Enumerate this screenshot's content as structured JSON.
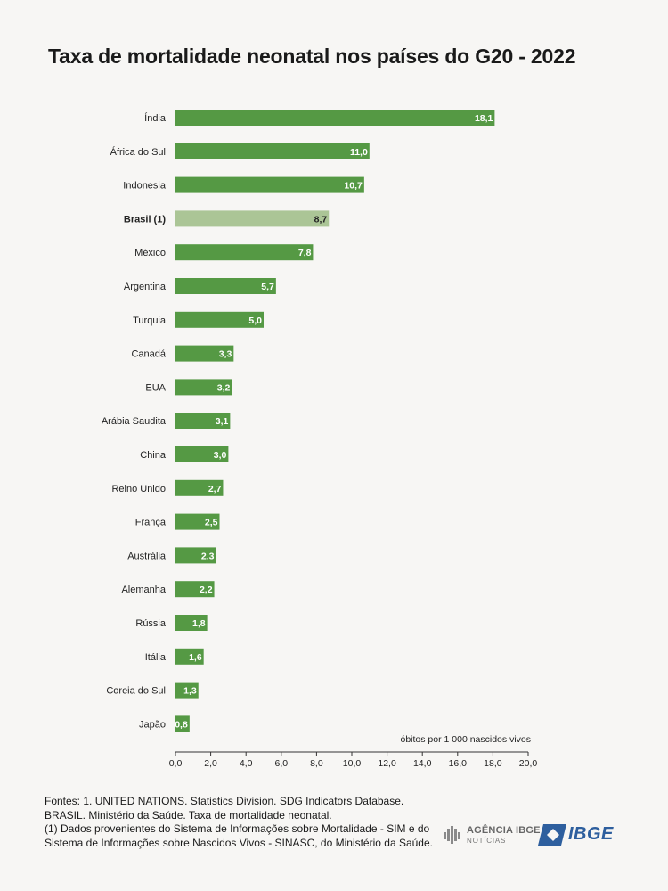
{
  "chart_data": {
    "type": "bar",
    "orientation": "horizontal",
    "title": "Taxa de mortalidade neonatal nos países do G20 - 2022",
    "xlabel": "óbitos por 1 000 nascidos vivos",
    "xlim": [
      0,
      20
    ],
    "xticks": [
      "0,0",
      "2,0",
      "4,0",
      "6,0",
      "8,0",
      "10,0",
      "12,0",
      "14,0",
      "16,0",
      "18,0",
      "20,0"
    ],
    "grid": false,
    "highlight_category": "Brasil (1)",
    "colors": {
      "bar": "#559944",
      "highlight": "#abc596",
      "label_text": "#ffffff",
      "axis": "#333333"
    },
    "categories": [
      "Índia",
      "África do Sul",
      "Indonesia",
      "Brasil (1)",
      "México",
      "Argentina",
      "Turquia",
      "Canadá",
      "EUA",
      "Arábia Saudita",
      "China",
      "Reino Unido",
      "França",
      "Austrália",
      "Alemanha",
      "Rússia",
      "Itália",
      "Coreia do Sul",
      "Japão"
    ],
    "values": [
      18.1,
      11.0,
      10.7,
      8.7,
      7.8,
      5.7,
      5.0,
      3.3,
      3.2,
      3.1,
      3.0,
      2.7,
      2.5,
      2.3,
      2.2,
      1.8,
      1.6,
      1.3,
      0.8
    ],
    "value_labels": [
      "18,1",
      "11,0",
      "10,7",
      "8,7",
      "7,8",
      "5,7",
      "5,0",
      "3,3",
      "3,2",
      "3,1",
      "3,0",
      "2,7",
      "2,5",
      "2,3",
      "2,2",
      "1,8",
      "1,6",
      "1,3",
      "0,8"
    ]
  },
  "footer": {
    "lines": [
      "Fontes: 1. UNITED NATIONS. Statistics Division. SDG Indicators Database.",
      "BRASIL. Ministério da Saúde. Taxa de mortalidade neonatal.",
      "(1) Dados provenientes do Sistema de Informações sobre Mortalidade - SIM e do",
      "Sistema de Informações sobre Nascidos Vivos - SINASC, do Ministério da Saúde."
    ]
  },
  "logos": {
    "agencia": {
      "name": "AGÊNCIA IBGE",
      "sub": "NOTÍCIAS",
      "icon": "ibge-bars-icon"
    },
    "ibge": {
      "name": "IBGE",
      "icon": "ibge-flag-icon"
    }
  }
}
